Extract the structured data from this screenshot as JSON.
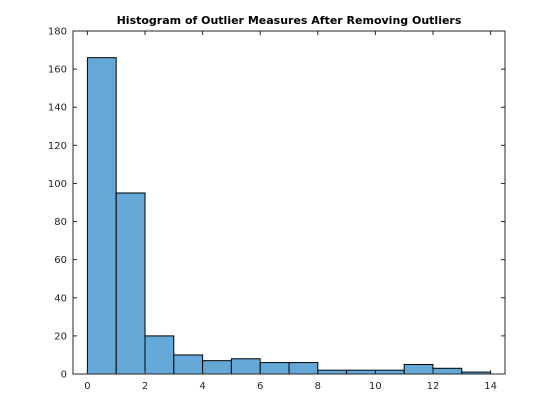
{
  "chart_data": {
    "type": "bar",
    "title": "Histogram of Outlier Measures After Removing Outliers",
    "xlabel": "",
    "ylabel": "",
    "bin_edges": [
      0,
      1,
      2,
      3,
      4,
      5,
      6,
      7,
      8,
      9,
      10,
      11,
      12,
      13,
      14
    ],
    "values": [
      166,
      95,
      20,
      10,
      7,
      8,
      6,
      6,
      2,
      2,
      2,
      5,
      3,
      1
    ],
    "xlim": [
      -0.5,
      14.5
    ],
    "ylim": [
      0,
      180
    ],
    "x_ticks": [
      0,
      2,
      4,
      6,
      8,
      10,
      12,
      14
    ],
    "y_ticks": [
      0,
      20,
      40,
      60,
      80,
      100,
      120,
      140,
      160,
      180
    ],
    "grid": false,
    "colors": {
      "bar_fill": "#64a8d8",
      "bar_edge": "#000000",
      "axis": "#262626"
    }
  }
}
